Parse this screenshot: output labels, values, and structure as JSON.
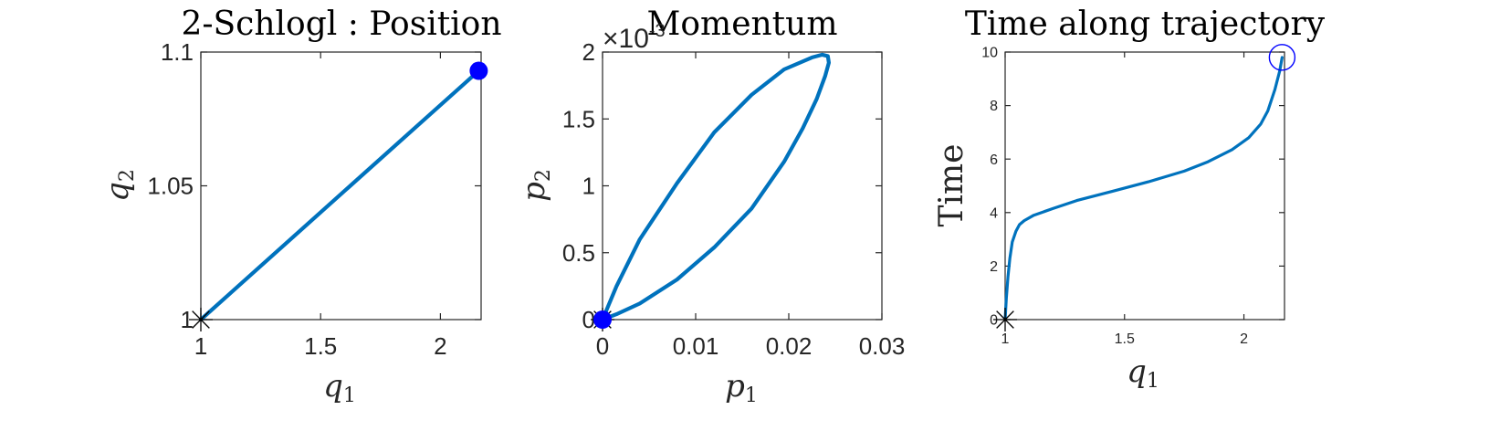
{
  "colors": {
    "line": "#0072BD",
    "marker": "#0000FF",
    "axes": "#262626"
  },
  "chart_data": [
    {
      "type": "line",
      "title": "2-Schlogl : Position",
      "xlabel": "q",
      "xlabel_sub": "1",
      "ylabel": "q",
      "ylabel_sub": "2",
      "xlim": [
        1,
        2.17
      ],
      "ylim": [
        1,
        1.1
      ],
      "xticks": [
        1,
        1.5,
        2
      ],
      "xtick_labels": [
        "1",
        "1.5",
        "2"
      ],
      "yticks": [
        1,
        1.05,
        1.1
      ],
      "ytick_labels": [
        "1",
        "1.05",
        "1.1"
      ],
      "series": [
        {
          "x": [
            1,
            2.16
          ],
          "y": [
            1,
            1.093
          ]
        }
      ],
      "start_marker": {
        "shape": "asterisk",
        "x": 1,
        "y": 1
      },
      "end_marker": {
        "shape": "filled-circle",
        "x": 2.16,
        "y": 1.093
      }
    },
    {
      "type": "line",
      "title": "Momentum",
      "xlabel": "p",
      "xlabel_sub": "1",
      "ylabel": "p",
      "ylabel_sub": "2",
      "exponent_label": "×10",
      "exponent_power": "-3",
      "xlim": [
        0,
        0.03
      ],
      "ylim": [
        0,
        0.002
      ],
      "xticks": [
        0,
        0.01,
        0.02,
        0.03
      ],
      "xtick_labels": [
        "0",
        "0.01",
        "0.02",
        "0.03"
      ],
      "yticks": [
        0,
        0.0005,
        0.001,
        0.0015,
        0.002
      ],
      "ytick_labels": [
        "0",
        "0.5",
        "1",
        "1.5",
        "2"
      ],
      "series": [
        {
          "x": [
            0,
            0.0015,
            0.004,
            0.008,
            0.012,
            0.016,
            0.0195,
            0.0225,
            0.0236,
            0.0242,
            0.0243,
            0.0239,
            0.023,
            0.0215,
            0.0195,
            0.016,
            0.012,
            0.008,
            0.004,
            0.0015,
            0
          ],
          "y": [
            0,
            0.00025,
            0.0006,
            0.00102,
            0.0014,
            0.00168,
            0.00187,
            0.00196,
            0.00198,
            0.00197,
            0.00192,
            0.00182,
            0.00165,
            0.00143,
            0.00118,
            0.00083,
            0.00054,
            0.0003,
            0.00012,
            4e-05,
            0
          ]
        }
      ],
      "start_marker": {
        "shape": "asterisk",
        "x": 0,
        "y": 0
      },
      "end_marker": {
        "shape": "filled-circle",
        "x": 0,
        "y": 0
      }
    },
    {
      "type": "line",
      "title": "Time along trajectory",
      "xlabel": "q",
      "xlabel_sub": "1",
      "ylabel": "Time",
      "xlim": [
        1,
        2.17
      ],
      "ylim": [
        0,
        10
      ],
      "xticks": [
        1,
        1.5,
        2
      ],
      "xtick_labels": [
        "1",
        "1.5",
        "2"
      ],
      "yticks": [
        0,
        2,
        4,
        6,
        8,
        10
      ],
      "ytick_labels": [
        "0",
        "2",
        "4",
        "6",
        "8",
        "10"
      ],
      "series": [
        {
          "x": [
            1.0,
            1.005,
            1.012,
            1.02,
            1.03,
            1.045,
            1.06,
            1.08,
            1.12,
            1.2,
            1.3,
            1.45,
            1.6,
            1.75,
            1.85,
            1.95,
            2.02,
            2.07,
            2.1,
            2.13,
            2.15,
            2.16
          ],
          "y": [
            0.0,
            0.8,
            1.6,
            2.3,
            2.9,
            3.3,
            3.55,
            3.7,
            3.9,
            4.15,
            4.45,
            4.8,
            5.15,
            5.55,
            5.9,
            6.35,
            6.8,
            7.3,
            7.8,
            8.6,
            9.3,
            9.8
          ]
        }
      ],
      "start_marker": {
        "shape": "asterisk",
        "x": 1,
        "y": 0
      },
      "end_marker": {
        "shape": "open-circle",
        "x": 2.16,
        "y": 9.8
      }
    }
  ]
}
